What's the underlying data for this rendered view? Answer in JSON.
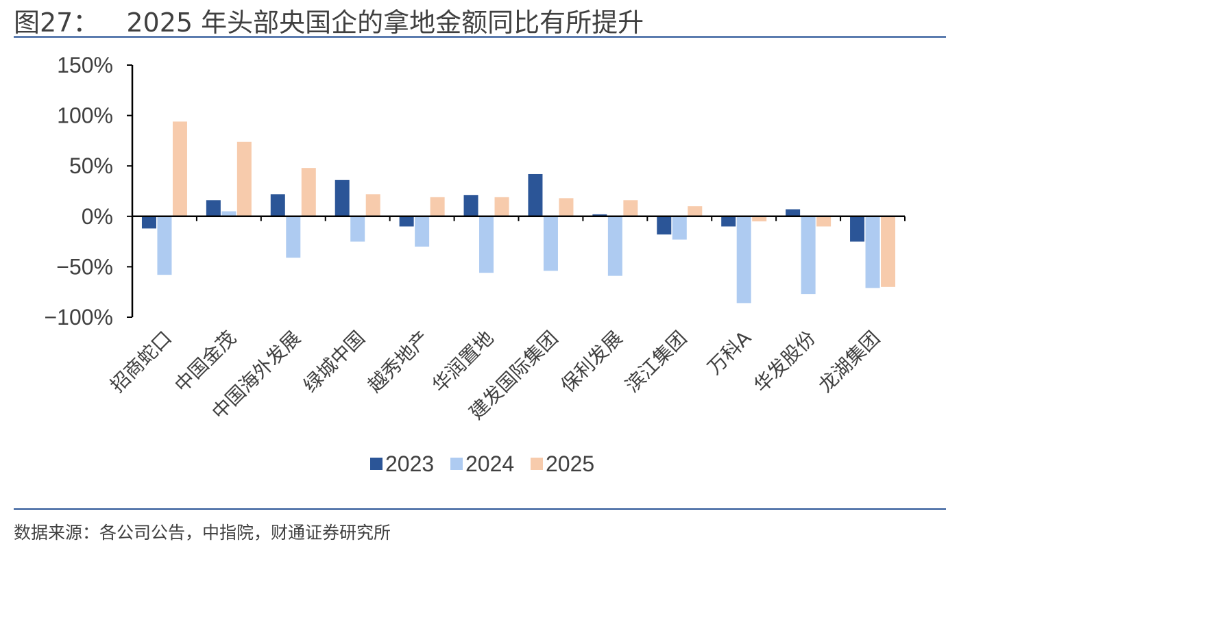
{
  "figure": {
    "label": "图27：",
    "title": "2025 年头部央国企的拿地金额同比有所提升"
  },
  "source": "数据来源：各公司公告，中指院，财通证券研究所",
  "chart_data": {
    "type": "bar",
    "title": "",
    "xlabel": "",
    "ylabel": "",
    "ylim": [
      -100,
      150
    ],
    "yticks": [
      150,
      100,
      50,
      0,
      -50,
      -100
    ],
    "ytick_labels": [
      "150%",
      "100%",
      "50%",
      "0%",
      "−50%",
      "−100%"
    ],
    "legend_position": "bottom",
    "grid": false,
    "categories": [
      "招商蛇口",
      "中国金茂",
      "中国海外发展",
      "绿城中国",
      "越秀地产",
      "华润置地",
      "建发国际集团",
      "保利发展",
      "滨江集团",
      "万科A",
      "华发股份",
      "龙湖集团"
    ],
    "series": [
      {
        "name": "2023",
        "color": "#2b5597",
        "values": [
          -12,
          16,
          22,
          36,
          -10,
          21,
          42,
          2,
          -18,
          -10,
          7,
          -25
        ]
      },
      {
        "name": "2024",
        "color": "#aecbf1",
        "values": [
          -58,
          5,
          -41,
          -25,
          -30,
          -56,
          -54,
          -59,
          -23,
          -86,
          -77,
          -71
        ]
      },
      {
        "name": "2025",
        "color": "#f7cbac",
        "values": [
          94,
          74,
          48,
          22,
          19,
          19,
          18,
          16,
          10,
          -5,
          -10,
          -70
        ]
      }
    ]
  }
}
